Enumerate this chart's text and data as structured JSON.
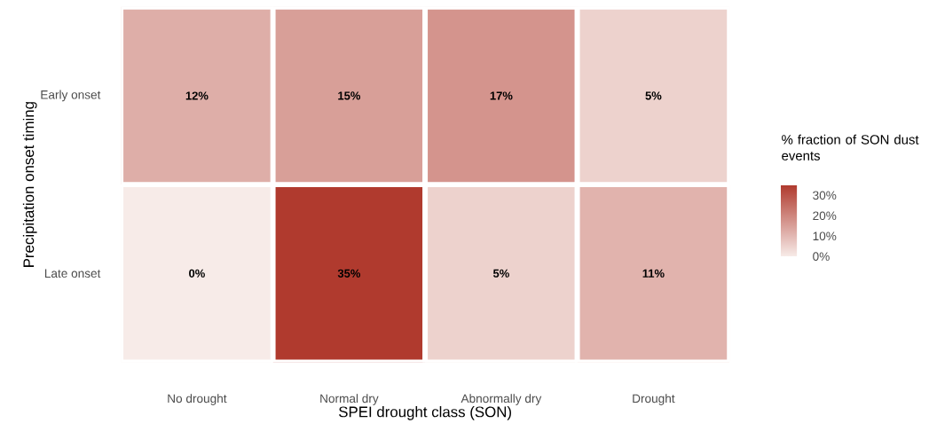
{
  "chart_data": {
    "type": "heatmap",
    "xlabel": "SPEI drought class (SON)",
    "ylabel": "Precipitation onset timing",
    "clabel": "% fraction of SON dust events",
    "categories": [
      "No drought",
      "Normal dry",
      "Abnormally dry",
      "Drought"
    ],
    "y_categories": [
      "Early onset",
      "Late onset"
    ],
    "cells": [
      [
        12,
        15,
        17,
        5
      ],
      [
        0,
        35,
        5,
        11
      ]
    ],
    "cell_labels": [
      [
        "12%",
        "15%",
        "17%",
        "5%"
      ],
      [
        "0%",
        "35%",
        "5%",
        "11%"
      ]
    ],
    "clim": [
      0,
      35
    ],
    "cticks": [
      {
        "value": 0,
        "label": "0%"
      },
      {
        "value": 10,
        "label": "10%"
      },
      {
        "value": 20,
        "label": "20%"
      },
      {
        "value": 30,
        "label": "30%"
      }
    ]
  }
}
